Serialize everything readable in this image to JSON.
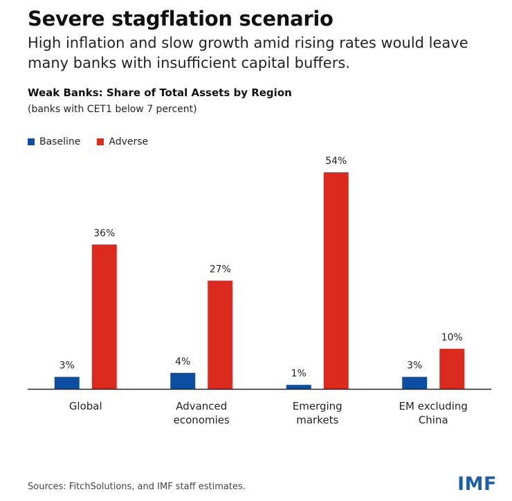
{
  "header": {
    "title": "Severe stagflation scenario",
    "subtitle": "High inflation and slow growth amid rising rates would leave many banks with insufficient capital buffers."
  },
  "chart_data": {
    "type": "bar",
    "title": "Weak Banks: Share of Total Assets by Region",
    "subtitle": "(banks with CET1 below 7 percent)",
    "categories": [
      [
        "Global"
      ],
      [
        "Advanced",
        "economies"
      ],
      [
        "Emerging",
        "markets"
      ],
      [
        "EM excluding",
        "China"
      ]
    ],
    "series": [
      {
        "name": "Baseline",
        "color": "#0b4ea2",
        "values": [
          3,
          4,
          1,
          3
        ],
        "labels": [
          "3%",
          "4%",
          "1%",
          "3%"
        ]
      },
      {
        "name": "Adverse",
        "color": "#dc2a1e",
        "values": [
          36,
          27,
          54,
          10
        ],
        "labels": [
          "36%",
          "27%",
          "54%",
          "10%"
        ]
      }
    ],
    "ylim": [
      0,
      54
    ],
    "grid": false,
    "legend": "top-left"
  },
  "footer": {
    "source": "Sources: FitchSolutions, and IMF staff estimates.",
    "logo": "IMF"
  }
}
